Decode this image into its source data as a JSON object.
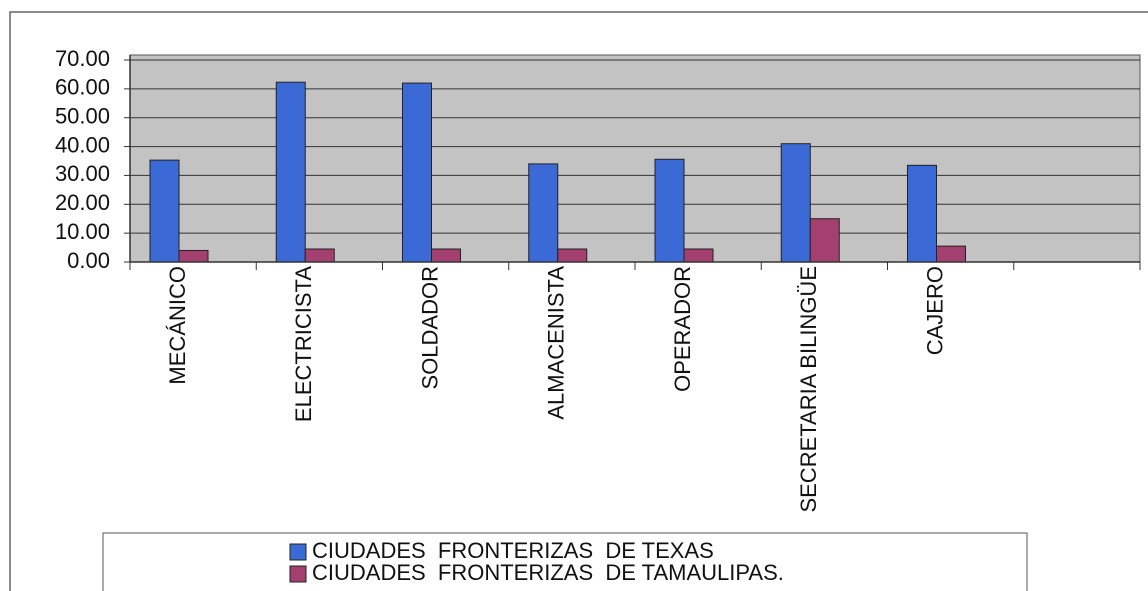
{
  "chart_data": {
    "type": "bar",
    "categories": [
      "MECÁNICO",
      "ELECTRICISTA",
      "SOLDADOR",
      "ALMACENISTA",
      "OPERADOR",
      "SECRETARIA BILINGÜE",
      "CAJERO",
      null
    ],
    "series": [
      {
        "name": "CIUDADES  FRONTERIZAS  DE TEXAS",
        "color": "#3b6ad6",
        "values": [
          35.3,
          62.3,
          62,
          34,
          35.6,
          41,
          33.5,
          null
        ]
      },
      {
        "name": "CIUDADES  FRONTERIZAS  DE TAMAULIPAS.",
        "color": "#a3406f",
        "values": [
          4,
          4.5,
          4.5,
          4.5,
          4.5,
          15,
          5.5,
          null
        ]
      }
    ],
    "ylim": [
      0,
      70
    ],
    "yticks": [
      {
        "value": 0,
        "label": "0.00"
      },
      {
        "value": 10,
        "label": "10.00"
      },
      {
        "value": 20,
        "label": "20.00"
      },
      {
        "value": 30,
        "label": "30.00"
      },
      {
        "value": 40,
        "label": "40.00"
      },
      {
        "value": 50,
        "label": "50.00"
      },
      {
        "value": 60,
        "label": "60.00"
      },
      {
        "value": 70,
        "label": "70.00"
      }
    ],
    "grid": true,
    "legend": "bottom"
  }
}
